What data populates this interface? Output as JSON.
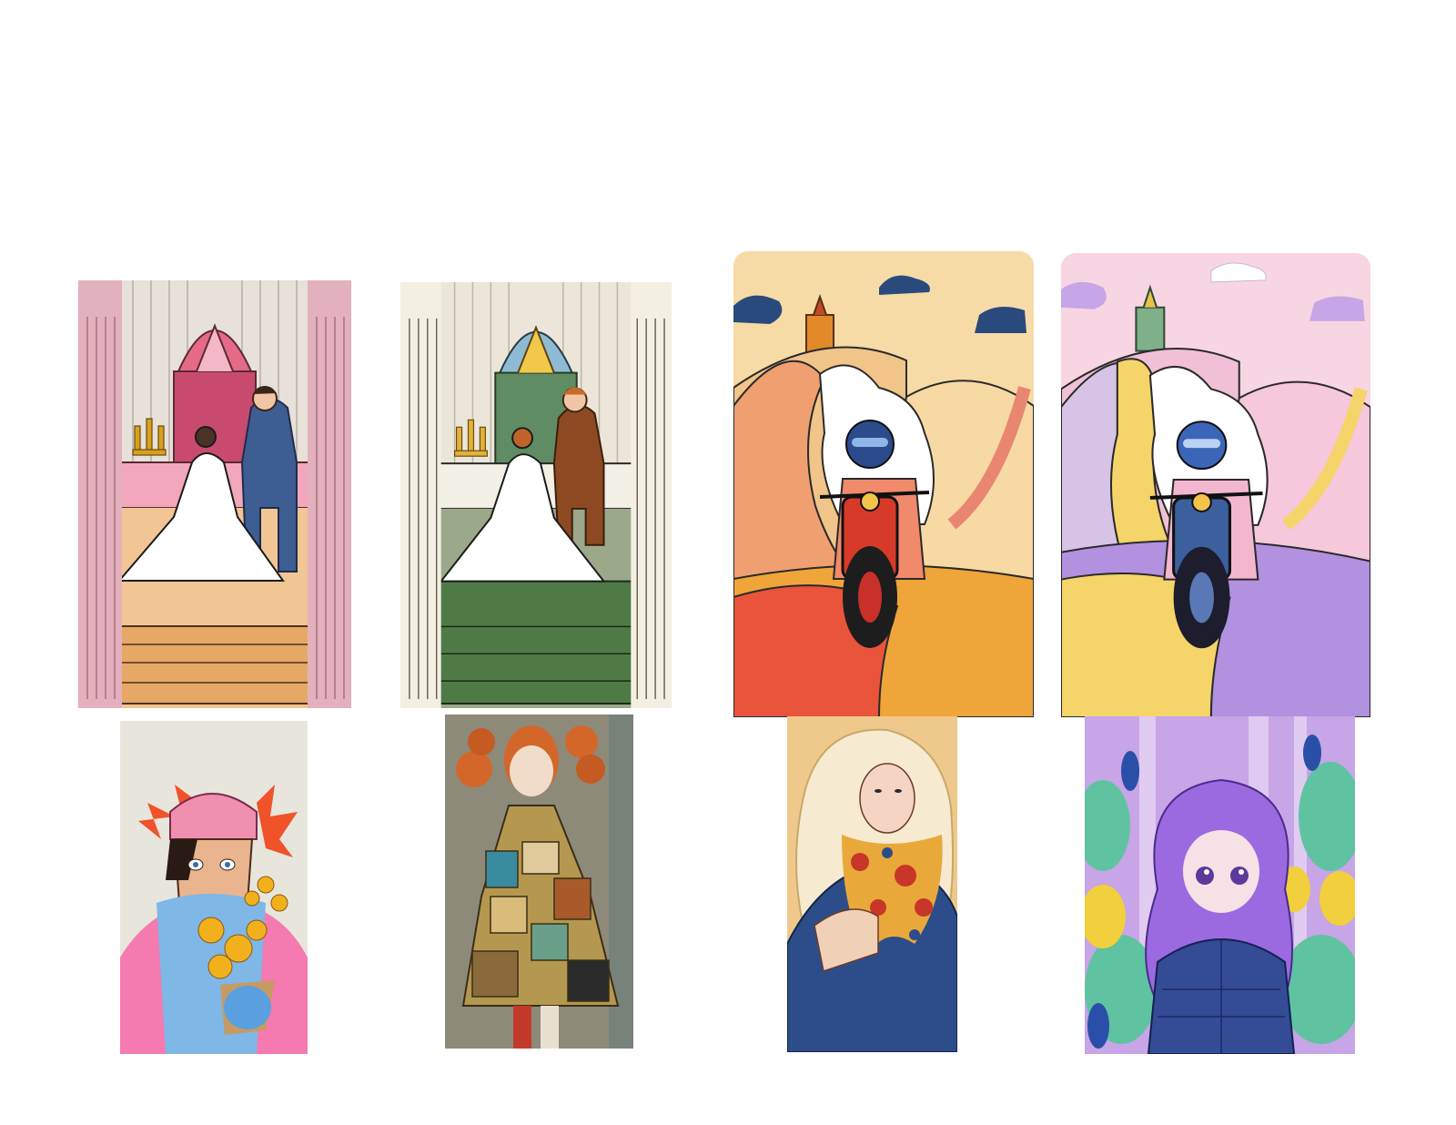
{
  "canvas": {
    "background": "#ffffff"
  },
  "top_row": [
    {
      "subject": "wedding-altar-pink",
      "palette": {
        "wall": "#e7e1d9",
        "altar": "#e46a86",
        "floor": "#e7a865",
        "column": "#e3b1bd",
        "suit": "#3e5d92"
      }
    },
    {
      "subject": "wedding-altar-green",
      "palette": {
        "wall": "#ece6d8",
        "altar": "#5f8c63",
        "floor": "#4f7a46",
        "column": "#f3efe3",
        "suit": "#8d4a22"
      }
    },
    {
      "subject": "motorcycle-rider-warm",
      "palette": {
        "sky": "#f6dba6",
        "hill_left": "#f0a070",
        "hill_right": "#f1c48a",
        "road": "#e9543a",
        "field": "#f0a53a",
        "helmet": "#2c4b8d"
      }
    },
    {
      "subject": "motorcycle-rider-pastel",
      "palette": {
        "sky": "#f7d5e3",
        "hill_left": "#d7c3e6",
        "hill_right": "#f1c0d6",
        "road": "#f5d46a",
        "field": "#b291e0",
        "helmet": "#3b66b8"
      }
    }
  ],
  "bottom_row": [
    {
      "subject": "girl-pink-beanie-flowers",
      "palette": {
        "bg": "#e8e5dd",
        "hat": "#f08fb0",
        "scarf": "#7fb7e6",
        "coat": "#f47ab0",
        "flowers": "#f2b01c"
      }
    },
    {
      "subject": "girl-patchwork-coat",
      "palette": {
        "bg": "#8e8a7a",
        "hair": "#d3672a",
        "coat": "#b5984f"
      }
    },
    {
      "subject": "girl-blonde-scarf",
      "palette": {
        "bg": "#efc98c",
        "hair": "#f6ead0",
        "coat": "#2d4d8a",
        "scarf": "#e9a93a"
      }
    },
    {
      "subject": "girl-purple-hair-forest",
      "palette": {
        "bg": "#c7a5e6",
        "hair": "#9b6ae0",
        "jacket": "#344b96",
        "leaves": "#5fc3a2"
      }
    }
  ]
}
